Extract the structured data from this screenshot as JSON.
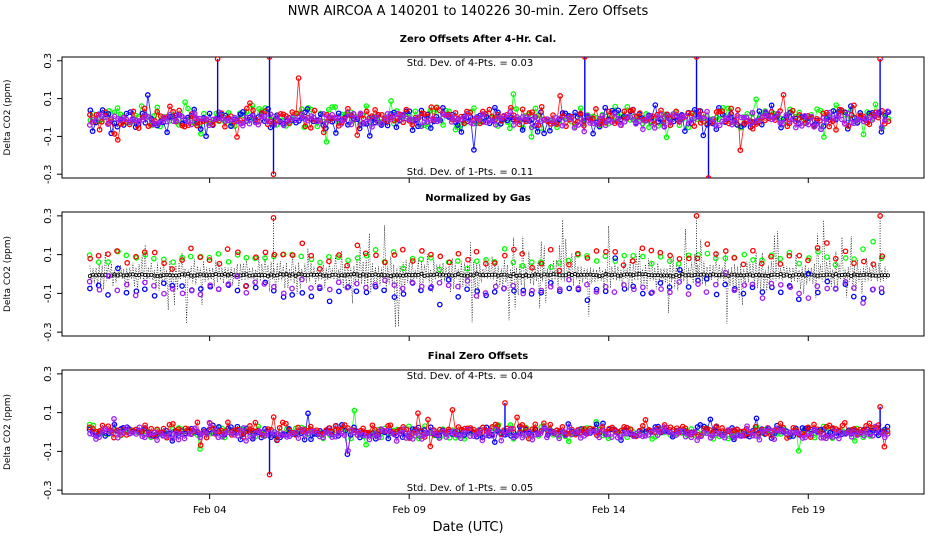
{
  "chart_data": {
    "type": "line",
    "title": "NWR   AIRCOA A   140201 to 140226   30-min. Zero Offsets",
    "xlabel": "Date (UTC)",
    "x_ticks": [
      "Feb 04",
      "Feb 09",
      "Feb 14",
      "Feb 19"
    ],
    "x_tick_days": [
      4,
      9,
      14,
      19
    ],
    "xlim_days": [
      0.3,
      21.9
    ],
    "data_start_day": 1,
    "data_end_day": 21,
    "colors": {
      "gas1": "#00ff00",
      "gas2": "#0000ff",
      "gas3": "#ff0000",
      "gas4": "#a020f0",
      "mean": "#000000"
    },
    "panels": [
      {
        "title": "Zero Offsets After 4-Hr. Cal.",
        "ylabel": "Delta CO2 (ppm)",
        "ylim": [
          -0.32,
          0.32
        ],
        "y_ticks": [
          -0.3,
          -0.1,
          0.1,
          0.3
        ],
        "y_tick_labels": [
          "-0.3",
          "-0.1",
          "0.1",
          "0.3"
        ],
        "annotation_top": "Std. Dev. of 4-Pts. = 0.03",
        "annotation_bottom": "Std. Dev. of 1-Pts. = 0.11",
        "series": [
          {
            "name": "gas1",
            "mean": 0.0,
            "sd": 0.07
          },
          {
            "name": "gas2",
            "mean": -0.01,
            "sd": 0.075
          },
          {
            "name": "gas3",
            "mean": 0.0,
            "sd": 0.07
          },
          {
            "name": "gas4",
            "mean": -0.01,
            "sd": 0.05
          }
        ],
        "mean_trace": false,
        "spikes": [
          {
            "day": 4.2,
            "value": 0.31
          },
          {
            "day": 5.5,
            "value": 0.32
          },
          {
            "day": 5.6,
            "value": -0.3
          },
          {
            "day": 13.4,
            "value": 0.32
          },
          {
            "day": 16.2,
            "value": 0.32
          },
          {
            "day": 16.5,
            "value": -0.32
          },
          {
            "day": 20.8,
            "value": 0.31
          }
        ]
      },
      {
        "title": "Normalized by Gas",
        "ylabel": "Delta CO2 (ppm)",
        "ylim": [
          -0.32,
          0.32
        ],
        "y_ticks": [
          -0.3,
          -0.1,
          0.1,
          0.3
        ],
        "y_tick_labels": [
          "-0.3",
          "-0.1",
          "0.1",
          "0.3"
        ],
        "annotation_top": "",
        "annotation_bottom": "",
        "series": [
          {
            "name": "gas1",
            "mean": 0.08,
            "sd": 0.06
          },
          {
            "name": "gas2",
            "mean": -0.08,
            "sd": 0.07
          },
          {
            "name": "gas3",
            "mean": 0.09,
            "sd": 0.08
          },
          {
            "name": "gas4",
            "mean": -0.07,
            "sd": 0.06
          }
        ],
        "mean_trace": true,
        "spikes": [
          {
            "day": 5.6,
            "value": 0.29
          },
          {
            "day": 16.2,
            "value": 0.3
          },
          {
            "day": 20.8,
            "value": 0.3
          }
        ]
      },
      {
        "title": "Final Zero Offsets",
        "ylabel": "Delta CO2 (ppm)",
        "ylim": [
          -0.32,
          0.32
        ],
        "y_ticks": [
          -0.3,
          -0.1,
          0.1,
          0.3
        ],
        "y_tick_labels": [
          "-0.3",
          "-0.1",
          "0.1",
          "0.3"
        ],
        "annotation_top": "Std. Dev. of 4-Pts. = 0.04",
        "annotation_bottom": "Std. Dev. of 1-Pts. = 0.05",
        "series": [
          {
            "name": "gas1",
            "mean": 0.0,
            "sd": 0.045
          },
          {
            "name": "gas2",
            "mean": 0.0,
            "sd": 0.045
          },
          {
            "name": "gas3",
            "mean": 0.01,
            "sd": 0.045
          },
          {
            "name": "gas4",
            "mean": -0.01,
            "sd": 0.04
          }
        ],
        "mean_trace": false,
        "spikes": [
          {
            "day": 5.5,
            "value": -0.22
          },
          {
            "day": 11.4,
            "value": 0.15
          },
          {
            "day": 20.8,
            "value": 0.13
          }
        ]
      }
    ]
  }
}
